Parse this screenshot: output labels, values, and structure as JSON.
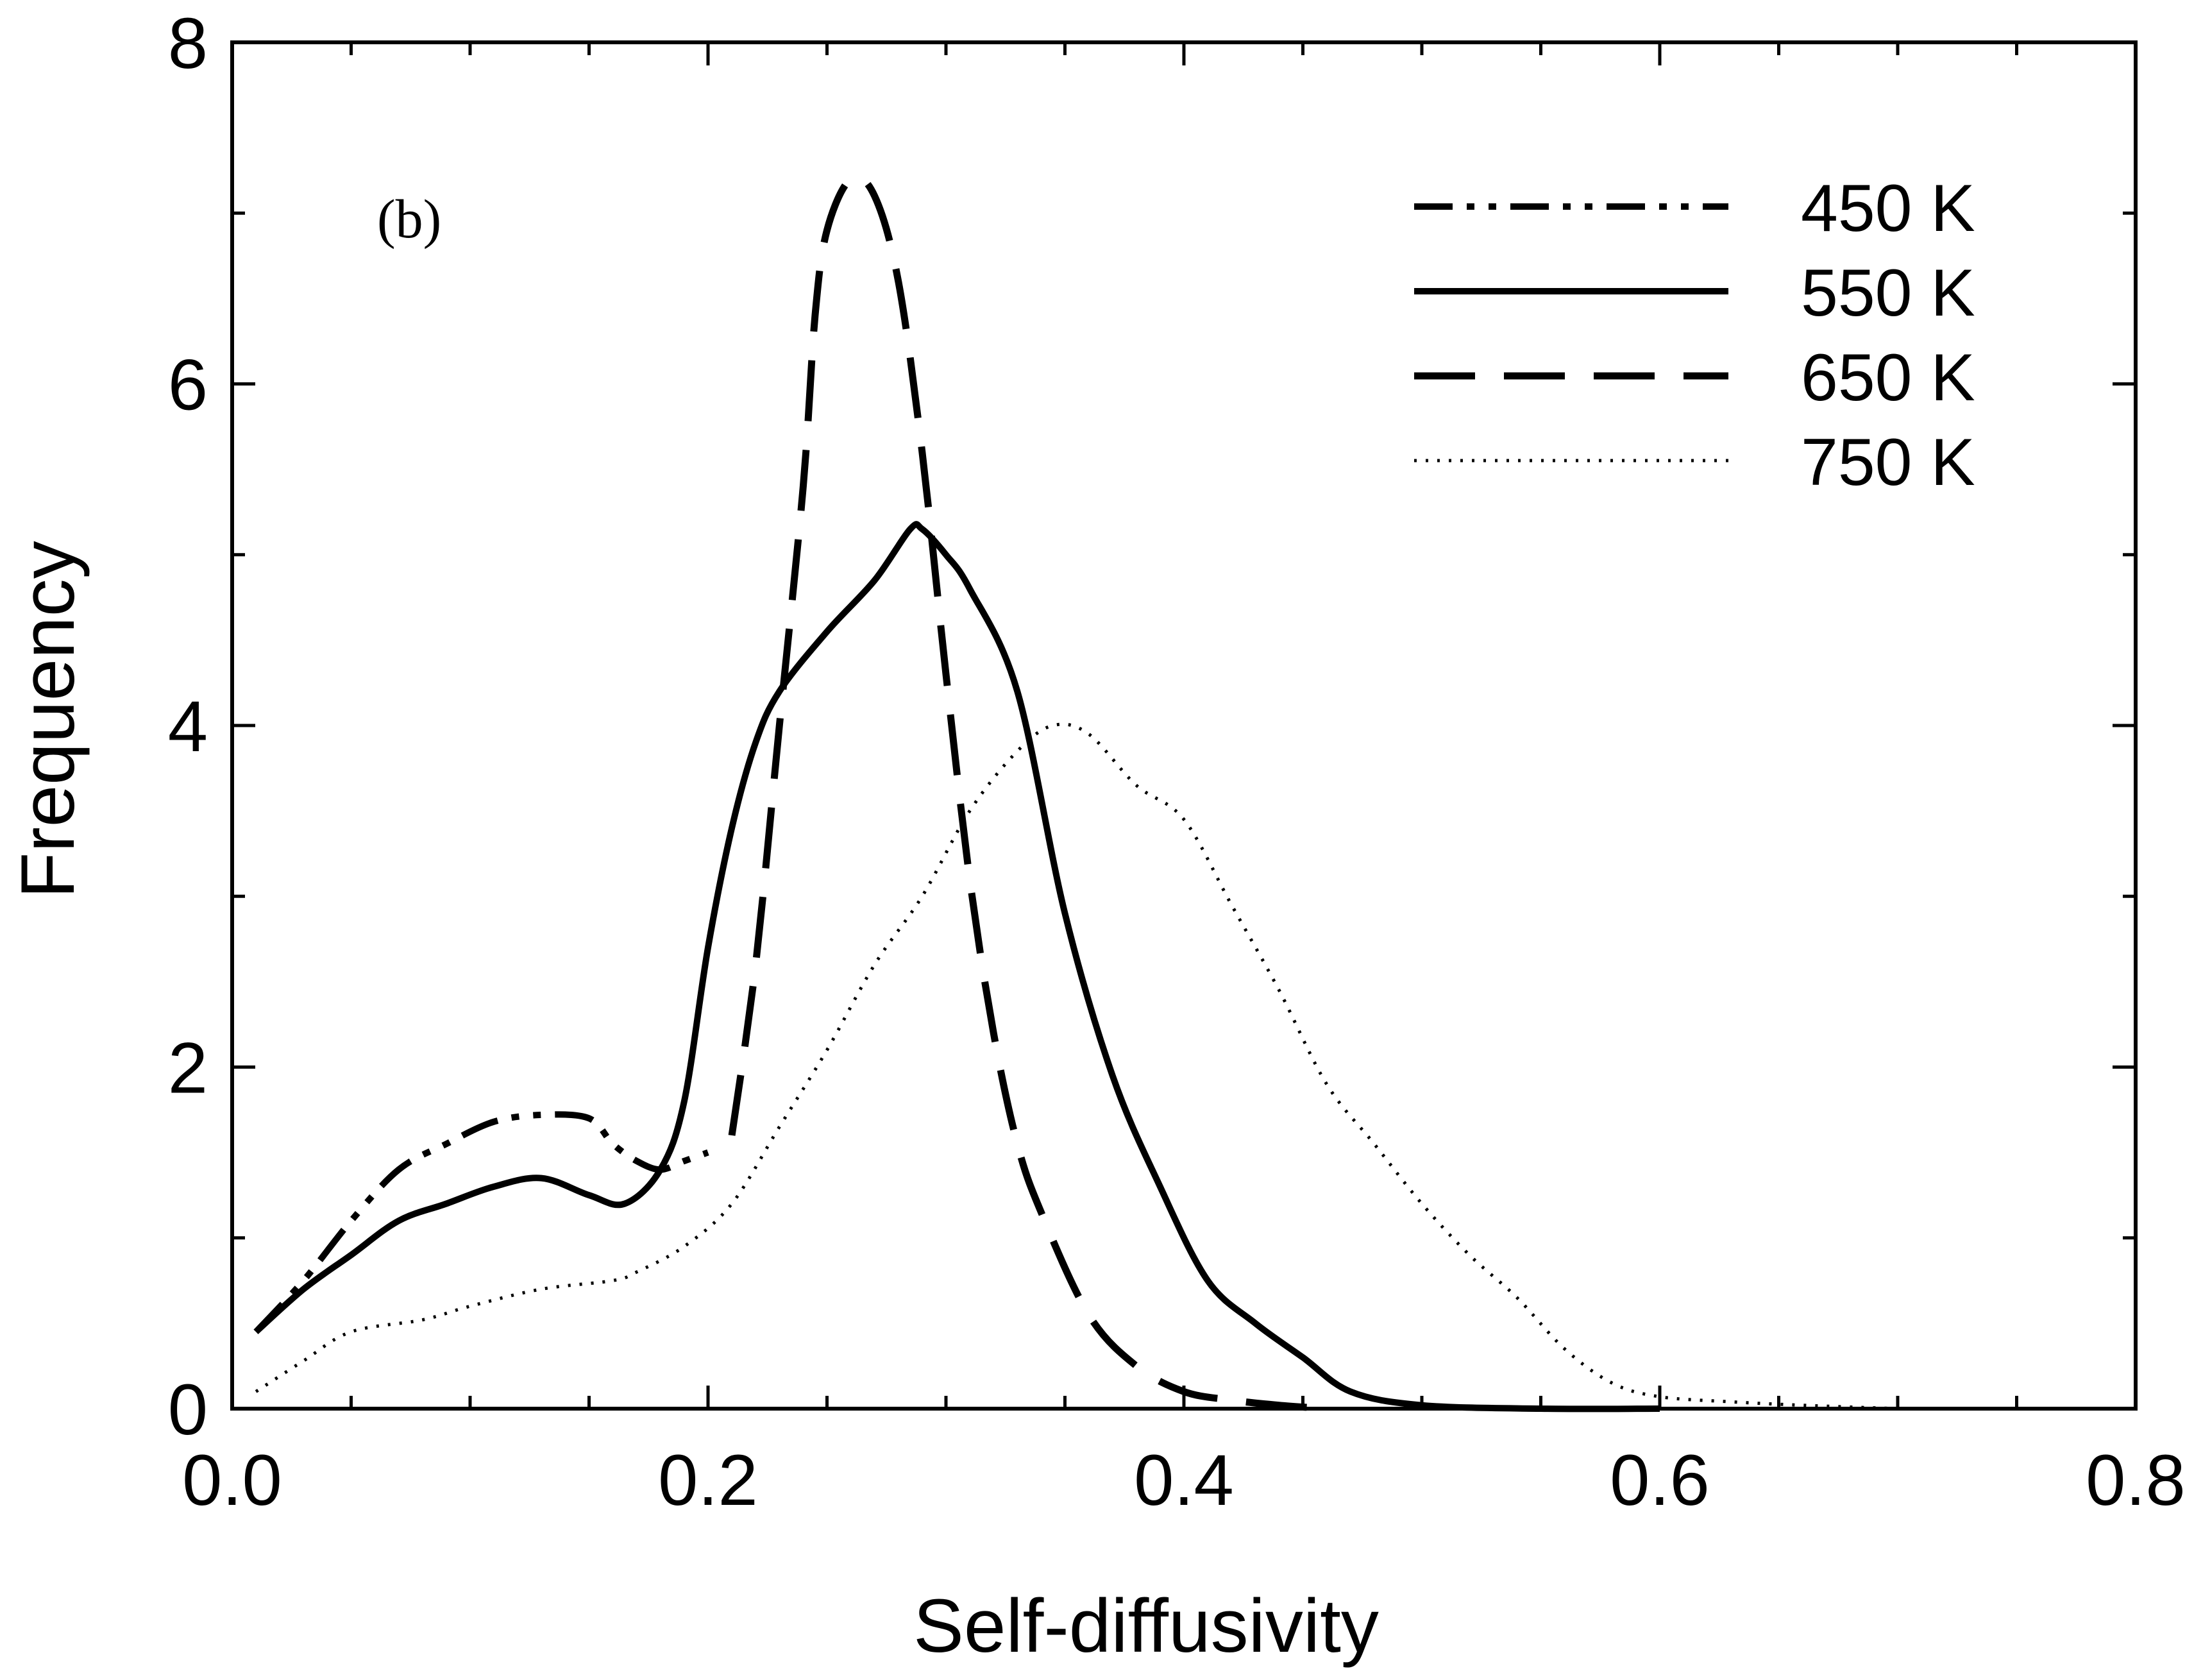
{
  "chart_data": {
    "type": "line",
    "panel_label": "(b)",
    "xlabel": "Self-diffusivity",
    "ylabel": "Frequency",
    "xlim": [
      0.0,
      0.8
    ],
    "ylim": [
      0,
      8
    ],
    "x_ticks": [
      "0.0",
      "0.2",
      "0.4",
      "0.6",
      "0.8"
    ],
    "y_ticks": [
      "0",
      "2",
      "4",
      "6",
      "8"
    ],
    "legend": {
      "placement": "top-right"
    },
    "grid": false,
    "series": [
      {
        "name": "450 K",
        "style": "dash-dot-dot",
        "x": [
          0.01,
          0.03,
          0.05,
          0.07,
          0.09,
          0.11,
          0.13,
          0.15,
          0.16,
          0.17,
          0.18,
          0.19,
          0.2
        ],
        "y": [
          0.45,
          0.75,
          1.1,
          1.4,
          1.55,
          1.68,
          1.72,
          1.7,
          1.55,
          1.45,
          1.4,
          1.45,
          1.5
        ]
      },
      {
        "name": "550 K",
        "style": "solid",
        "x": [
          0.01,
          0.03,
          0.05,
          0.07,
          0.09,
          0.11,
          0.13,
          0.15,
          0.165,
          0.18,
          0.19,
          0.2,
          0.21,
          0.22,
          0.23,
          0.25,
          0.27,
          0.285,
          0.29,
          0.3,
          0.31,
          0.33,
          0.35,
          0.37,
          0.39,
          0.41,
          0.43,
          0.45,
          0.47,
          0.5,
          0.55,
          0.6
        ],
        "y": [
          0.45,
          0.7,
          0.9,
          1.1,
          1.2,
          1.3,
          1.35,
          1.25,
          1.2,
          1.4,
          1.8,
          2.7,
          3.4,
          3.9,
          4.2,
          4.55,
          4.85,
          5.15,
          5.15,
          5.0,
          4.8,
          4.2,
          2.9,
          1.95,
          1.3,
          0.75,
          0.5,
          0.3,
          0.1,
          0.02,
          0.0,
          0.0
        ]
      },
      {
        "name": "650 K",
        "style": "long-dash",
        "x": [
          0.21,
          0.22,
          0.23,
          0.24,
          0.245,
          0.25,
          0.26,
          0.27,
          0.28,
          0.29,
          0.3,
          0.31,
          0.32,
          0.33,
          0.34,
          0.36,
          0.38,
          0.4,
          0.42,
          0.44,
          0.46
        ],
        "y": [
          1.6,
          2.6,
          4.0,
          5.4,
          6.4,
          6.9,
          7.2,
          7.1,
          6.6,
          5.6,
          4.3,
          3.1,
          2.2,
          1.55,
          1.15,
          0.55,
          0.25,
          0.1,
          0.05,
          0.02,
          0.0
        ]
      },
      {
        "name": "750 K",
        "style": "dotted",
        "x": [
          0.01,
          0.03,
          0.05,
          0.08,
          0.1,
          0.13,
          0.16,
          0.17,
          0.19,
          0.21,
          0.23,
          0.25,
          0.27,
          0.29,
          0.31,
          0.33,
          0.345,
          0.36,
          0.38,
          0.4,
          0.42,
          0.44,
          0.46,
          0.48,
          0.5,
          0.52,
          0.54,
          0.56,
          0.58,
          0.6,
          0.63,
          0.66,
          0.7
        ],
        "y": [
          0.1,
          0.28,
          0.45,
          0.52,
          0.6,
          0.7,
          0.75,
          0.8,
          0.95,
          1.2,
          1.65,
          2.1,
          2.6,
          3.0,
          3.5,
          3.85,
          4.0,
          3.95,
          3.65,
          3.45,
          2.95,
          2.45,
          1.9,
          1.55,
          1.2,
          0.9,
          0.65,
          0.35,
          0.15,
          0.07,
          0.04,
          0.02,
          0.0
        ]
      }
    ]
  }
}
